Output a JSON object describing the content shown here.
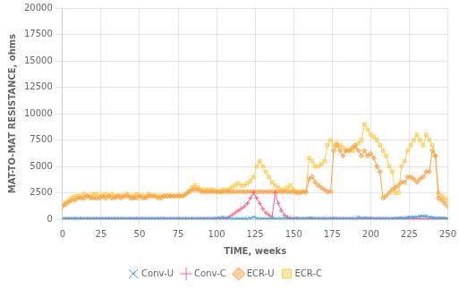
{
  "chart_data": {
    "type": "line",
    "xlabel": "TIME, weeks",
    "ylabel": "MAT-TO-MAT RESISTANCE, ohms",
    "xlim": [
      0,
      250
    ],
    "ylim": [
      0,
      20000
    ],
    "xticks": [
      0,
      25,
      50,
      75,
      100,
      125,
      150,
      175,
      200,
      225,
      250
    ],
    "yticks": [
      0,
      2500,
      5000,
      7500,
      10000,
      12500,
      15000,
      17500,
      20000
    ],
    "grid": true,
    "legend": "bottom",
    "x": [
      0,
      2,
      4,
      6,
      8,
      10,
      12,
      14,
      16,
      18,
      20,
      22,
      24,
      26,
      28,
      30,
      32,
      34,
      36,
      38,
      40,
      42,
      44,
      46,
      48,
      50,
      52,
      54,
      56,
      58,
      60,
      62,
      64,
      66,
      68,
      70,
      72,
      74,
      76,
      78,
      80,
      82,
      84,
      86,
      88,
      90,
      92,
      94,
      96,
      98,
      100,
      102,
      104,
      106,
      108,
      110,
      112,
      114,
      116,
      118,
      120,
      122,
      124,
      126,
      128,
      130,
      132,
      134,
      136,
      138,
      140,
      142,
      144,
      146,
      148,
      150,
      152,
      154,
      156,
      158,
      160,
      162,
      164,
      166,
      168,
      170,
      172,
      174,
      176,
      178,
      180,
      182,
      184,
      186,
      188,
      190,
      192,
      194,
      196,
      198,
      200,
      202,
      204,
      206,
      208,
      210,
      212,
      214,
      216,
      218,
      220,
      222,
      224,
      226,
      228,
      230,
      232,
      234,
      236,
      238,
      240,
      242,
      244,
      246,
      248,
      250
    ],
    "series": [
      {
        "name": "Conv-U",
        "marker": "x",
        "line_style": "solid",
        "values": [
          50,
          50,
          50,
          50,
          50,
          50,
          50,
          50,
          50,
          50,
          50,
          50,
          50,
          50,
          50,
          50,
          50,
          50,
          50,
          50,
          50,
          50,
          50,
          50,
          50,
          50,
          50,
          50,
          50,
          50,
          50,
          50,
          50,
          50,
          50,
          50,
          50,
          50,
          50,
          50,
          50,
          50,
          50,
          50,
          50,
          50,
          50,
          50,
          50,
          50,
          100,
          100,
          200,
          100,
          100,
          50,
          50,
          50,
          50,
          50,
          50,
          100,
          200,
          100,
          50,
          50,
          50,
          50,
          50,
          50,
          50,
          50,
          100,
          50,
          50,
          50,
          100,
          50,
          50,
          50,
          100,
          100,
          50,
          50,
          50,
          50,
          50,
          50,
          100,
          50,
          50,
          50,
          50,
          50,
          50,
          50,
          200,
          100,
          100,
          100,
          100,
          50,
          50,
          50,
          50,
          50,
          50,
          50,
          100,
          100,
          100,
          100,
          200,
          200,
          200,
          200,
          300,
          300,
          300,
          200,
          200,
          100,
          100,
          100,
          100,
          50
        ]
      },
      {
        "name": "Conv-C",
        "marker": "plus",
        "line_style": "solid",
        "values": [
          50,
          50,
          50,
          50,
          50,
          50,
          50,
          50,
          50,
          50,
          50,
          50,
          50,
          50,
          50,
          50,
          50,
          50,
          50,
          50,
          50,
          50,
          50,
          50,
          50,
          50,
          50,
          50,
          50,
          50,
          50,
          50,
          50,
          50,
          50,
          50,
          50,
          50,
          50,
          50,
          50,
          50,
          50,
          50,
          50,
          50,
          50,
          50,
          50,
          50,
          50,
          50,
          50,
          100,
          200,
          400,
          600,
          800,
          1000,
          1200,
          1500,
          2000,
          2500,
          2000,
          1500,
          1000,
          600,
          400,
          200,
          2500,
          1500,
          800,
          400,
          200,
          100,
          100,
          50,
          50,
          50,
          50,
          50,
          50,
          50,
          50,
          50,
          50,
          50,
          50,
          50,
          50,
          50,
          50,
          50,
          50,
          50,
          50,
          50,
          50,
          50,
          50,
          50,
          50,
          50,
          50,
          50,
          50,
          50,
          50,
          50,
          50,
          50,
          50,
          50,
          50,
          50,
          50,
          50,
          50,
          50,
          50,
          50,
          50,
          50,
          50,
          50,
          50
        ]
      },
      {
        "name": "ECR-U",
        "marker": "diamond",
        "line_style": "solid",
        "values": [
          1200,
          1400,
          1600,
          1800,
          1800,
          2000,
          2000,
          2000,
          2200,
          2000,
          2000,
          2000,
          2000,
          2200,
          2000,
          2200,
          2000,
          2000,
          2200,
          2000,
          2200,
          2200,
          2000,
          2000,
          2000,
          2200,
          2000,
          2000,
          2200,
          2200,
          2200,
          2000,
          2000,
          2200,
          2200,
          2200,
          2200,
          2200,
          2200,
          2200,
          2400,
          2600,
          2800,
          2800,
          2800,
          2600,
          2600,
          2600,
          2600,
          2600,
          2600,
          2600,
          2600,
          2600,
          2600,
          2600,
          2600,
          2600,
          2600,
          2600,
          2600,
          2600,
          2600,
          2600,
          2600,
          2600,
          2600,
          2600,
          2600,
          2600,
          2600,
          2600,
          2600,
          2600,
          2600,
          2600,
          2500,
          2500,
          2600,
          2600,
          3800,
          4000,
          3500,
          3200,
          3000,
          2800,
          2600,
          2600,
          6500,
          7000,
          6500,
          6000,
          6500,
          6500,
          6800,
          7000,
          6500,
          6000,
          6500,
          6000,
          6200,
          5800,
          5000,
          4500,
          2000,
          2200,
          2500,
          2800,
          3000,
          3200,
          3500,
          3500,
          4000,
          4000,
          3800,
          3500,
          3800,
          4000,
          4500,
          4500,
          6500,
          6000,
          2000,
          1800,
          1500,
          1200
        ]
      },
      {
        "name": "ECR-C",
        "marker": "square",
        "line_style": "solid",
        "values": [
          1400,
          1600,
          1800,
          2000,
          2200,
          2200,
          2200,
          2400,
          2200,
          2200,
          2400,
          2400,
          2200,
          2200,
          2400,
          2200,
          2400,
          2200,
          2200,
          2200,
          2200,
          2400,
          2200,
          2200,
          2400,
          2200,
          2200,
          2200,
          2400,
          2200,
          2200,
          2200,
          2200,
          2200,
          2200,
          2200,
          2200,
          2200,
          2200,
          2200,
          2400,
          2600,
          3000,
          3200,
          3000,
          2800,
          2800,
          2800,
          2800,
          2800,
          2600,
          2600,
          2800,
          2800,
          2800,
          3000,
          3200,
          3400,
          3200,
          3200,
          3400,
          3600,
          4000,
          5000,
          5500,
          5000,
          4500,
          4000,
          3500,
          3200,
          3000,
          2800,
          2800,
          3000,
          3200,
          2800,
          2600,
          2600,
          2600,
          2600,
          5800,
          5500,
          5000,
          5000,
          5200,
          5500,
          7000,
          7500,
          7000,
          7200,
          7000,
          6800,
          6500,
          6500,
          6500,
          6800,
          7200,
          7500,
          9000,
          8500,
          8000,
          7800,
          7500,
          7000,
          6500,
          6000,
          5000,
          4500,
          2500,
          2500,
          5000,
          5500,
          6500,
          7000,
          7500,
          8000,
          7500,
          7000,
          8000,
          7500,
          7000,
          6000,
          2500,
          2200,
          2000,
          1800
        ]
      }
    ]
  }
}
